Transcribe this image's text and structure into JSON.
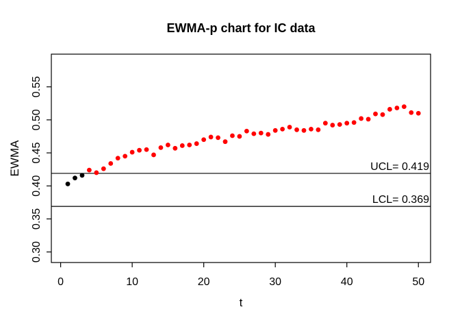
{
  "chart_data": {
    "type": "scatter",
    "title": "EWMA-p chart for IC data",
    "xlabel": "t",
    "ylabel": "EWMA",
    "x_ticks": [
      0,
      10,
      20,
      30,
      40,
      50
    ],
    "y_ticks": [
      0.3,
      0.35,
      0.4,
      0.45,
      0.5,
      0.55
    ],
    "xlim": [
      -1.3,
      51.7
    ],
    "ylim": [
      0.284,
      0.5995
    ],
    "grid": false,
    "legend": "none",
    "ucl": {
      "label": "UCL= 0.419",
      "value": 0.419
    },
    "lcl": {
      "label": "LCL= 0.369",
      "value": 0.369
    },
    "point_color_in_control": "#000000",
    "point_color_signal": "#FF0000",
    "black_point_count": 3,
    "x": [
      1,
      2,
      3,
      4,
      5,
      6,
      7,
      8,
      9,
      10,
      11,
      12,
      13,
      14,
      15,
      16,
      17,
      18,
      19,
      20,
      21,
      22,
      23,
      24,
      25,
      26,
      27,
      28,
      29,
      30,
      31,
      32,
      33,
      34,
      35,
      36,
      37,
      38,
      39,
      40,
      41,
      42,
      43,
      44,
      45,
      46,
      47,
      48,
      49,
      50
    ],
    "y": [
      0.403,
      0.412,
      0.416,
      0.424,
      0.42,
      0.426,
      0.434,
      0.442,
      0.445,
      0.451,
      0.454,
      0.455,
      0.447,
      0.458,
      0.462,
      0.457,
      0.461,
      0.462,
      0.464,
      0.47,
      0.474,
      0.473,
      0.467,
      0.476,
      0.475,
      0.483,
      0.479,
      0.48,
      0.478,
      0.484,
      0.486,
      0.489,
      0.485,
      0.484,
      0.486,
      0.485,
      0.495,
      0.492,
      0.493,
      0.495,
      0.496,
      0.502,
      0.501,
      0.509,
      0.508,
      0.516,
      0.518,
      0.52,
      0.511,
      0.51
    ]
  }
}
